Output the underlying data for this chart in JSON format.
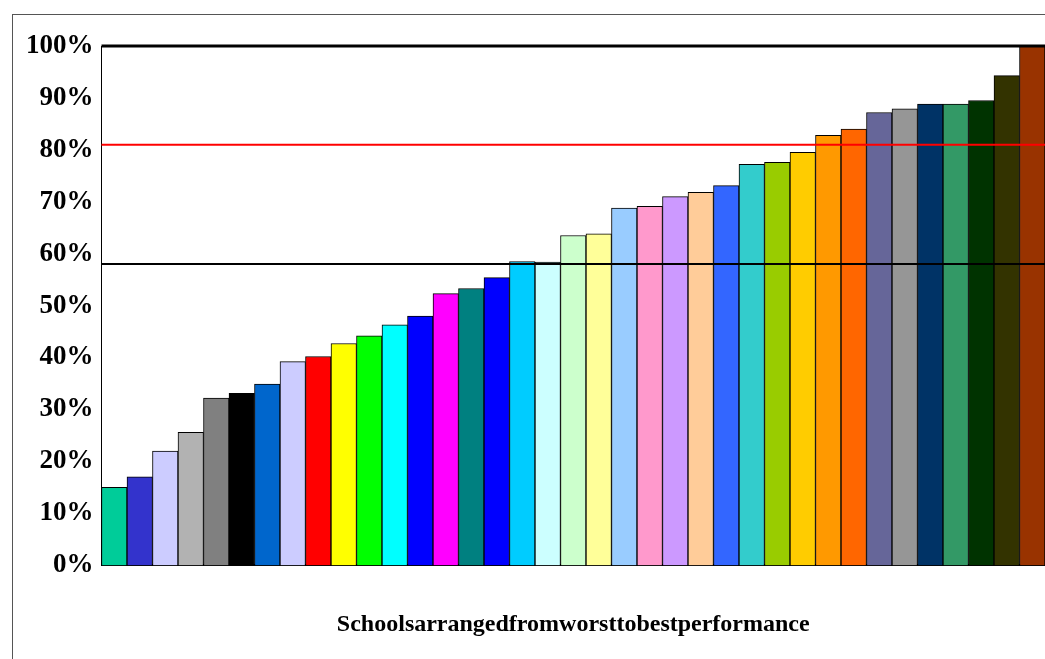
{
  "chart_data": {
    "type": "bar",
    "xlabel": "Schoolsarrangedfromworsttobestperformance",
    "categories": [
      null,
      null,
      null,
      null,
      null,
      null,
      null,
      null,
      null,
      null,
      null,
      null,
      null,
      null,
      null,
      null,
      null,
      null,
      null,
      null,
      null,
      null,
      null,
      null,
      null,
      null,
      null,
      null,
      null,
      null,
      null,
      null,
      null,
      null,
      null,
      null,
      null
    ],
    "values": [
      15,
      17,
      22,
      25.6,
      32.2,
      33.1,
      34.9,
      39.2,
      40.2,
      42.7,
      44.2,
      46.3,
      48,
      52.3,
      53.3,
      55.4,
      58.5,
      58.4,
      63.5,
      63.8,
      68.8,
      69.1,
      71,
      71.8,
      73.1,
      77.2,
      77.6,
      79.5,
      82.8,
      84,
      87.2,
      87.9,
      88.8,
      88.8,
      89.5,
      94.3,
      100
    ],
    "colors": [
      "#00cc99",
      "#3333cc",
      "#ccccff",
      "#b2b2b2",
      "#808080",
      "#000000",
      "#0066cc",
      "#ccccff",
      "#ff0000",
      "#ffff00",
      "#00ff00",
      "#00ffff",
      "#0000ff",
      "#ff00ff",
      "#008080",
      "#0000ff",
      "#00ccff",
      "#ccffff",
      "#ccffcc",
      "#ffff99",
      "#99ccff",
      "#ff99cc",
      "#cc99ff",
      "#ffcc99",
      "#3366ff",
      "#33cccc",
      "#99cc00",
      "#ffcc00",
      "#ff9900",
      "#ff6600",
      "#666699",
      "#969696",
      "#003366",
      "#339966",
      "#003300",
      "#333300",
      "#993300"
    ],
    "ylim": [
      0,
      100
    ],
    "yticks": [
      {
        "value": 0,
        "label": "0%"
      },
      {
        "value": 10,
        "label": "10%"
      },
      {
        "value": 20,
        "label": "20%"
      },
      {
        "value": 30,
        "label": "30%"
      },
      {
        "value": 40,
        "label": "40%"
      },
      {
        "value": 50,
        "label": "50%"
      },
      {
        "value": 60,
        "label": "60%"
      },
      {
        "value": 70,
        "label": "70%"
      },
      {
        "value": 80,
        "label": "80%"
      },
      {
        "value": 90,
        "label": "90%"
      },
      {
        "value": 100,
        "label": "100%"
      }
    ],
    "ref_lines": [
      {
        "axis": "y",
        "value": 58,
        "color": "#000000"
      },
      {
        "axis": "y",
        "value": 81,
        "color": "#ff0000"
      }
    ]
  }
}
